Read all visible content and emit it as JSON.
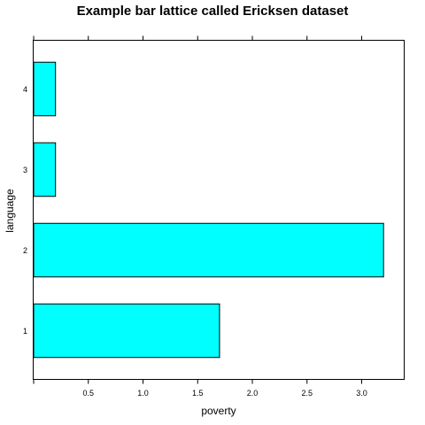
{
  "chart_data": {
    "type": "bar",
    "orientation": "horizontal",
    "title": "Example bar lattice called Ericksen dataset",
    "xlabel": "poverty",
    "ylabel": "language",
    "categories": [
      "1",
      "2",
      "3",
      "4"
    ],
    "values": [
      1.7,
      3.2,
      0.2,
      0.2
    ],
    "xlim": [
      0,
      3.4
    ],
    "xticks": [
      0.5,
      1.0,
      1.5,
      2.0,
      2.5,
      3.0
    ],
    "xtick_labels": [
      "0.5",
      "1.0",
      "1.5",
      "2.0",
      "2.5",
      "3.0"
    ],
    "bar_color": "#00FFFF",
    "grid": false,
    "legend": "none"
  }
}
